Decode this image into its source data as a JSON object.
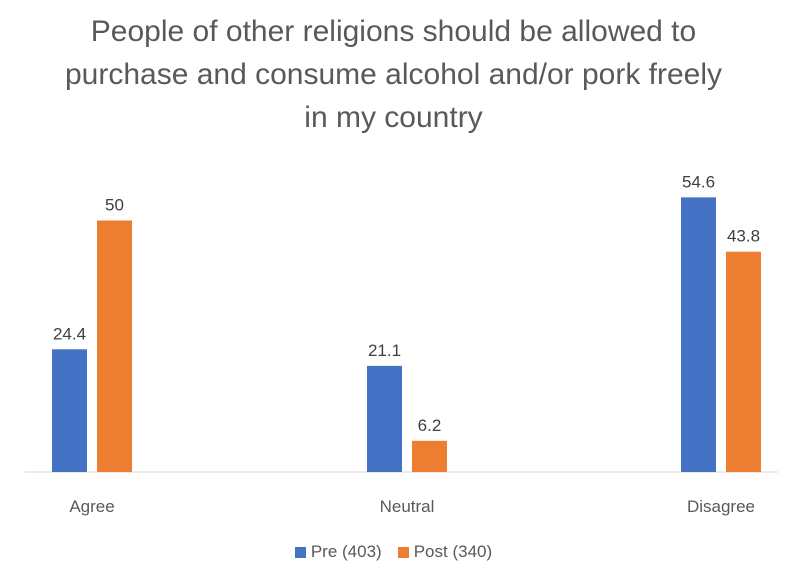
{
  "chart_data": {
    "type": "bar",
    "title": "People of other religions should be allowed to purchase and consume alcohol and/or pork freely in my country",
    "categories": [
      "Agree",
      "Neutral",
      "Disagree"
    ],
    "series": [
      {
        "name": "Pre (403)",
        "values": [
          24.4,
          21.1,
          54.6
        ],
        "color": "#4472C4"
      },
      {
        "name": "Post (340)",
        "values": [
          50,
          6.2,
          43.8
        ],
        "color": "#ED7D31"
      }
    ],
    "ylim": [
      0,
      60
    ],
    "grid": false,
    "legend_position": "bottom",
    "data_labels": true
  }
}
